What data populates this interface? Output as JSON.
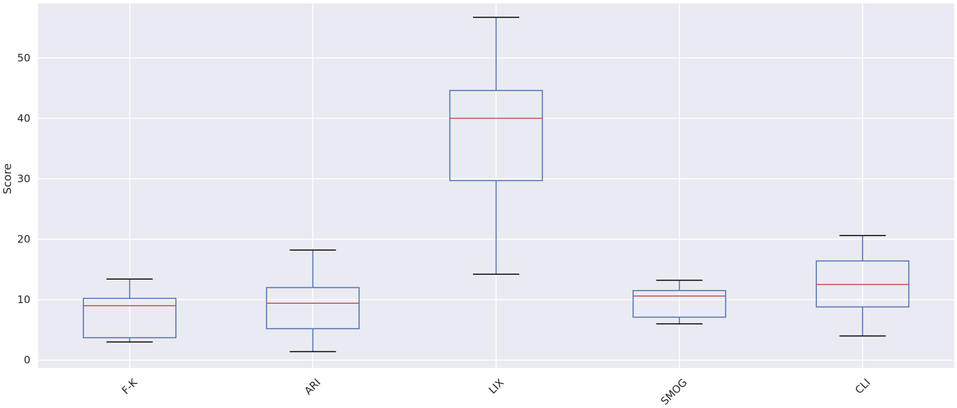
{
  "chart_data": {
    "type": "box",
    "title": "",
    "xlabel": "",
    "ylabel": "Score",
    "ylim": [
      -1.3,
      59.0
    ],
    "yticks": [
      0,
      10,
      20,
      30,
      40,
      50
    ],
    "grid": true,
    "categories": [
      "F-K",
      "ARI",
      "LIX",
      "SMOG",
      "CLI"
    ],
    "boxes": [
      {
        "name": "F-K",
        "whisker_low": 3.0,
        "q1": 3.7,
        "median": 9.0,
        "q3": 10.2,
        "whisker_high": 13.4
      },
      {
        "name": "ARI",
        "whisker_low": 1.4,
        "q1": 5.2,
        "median": 9.4,
        "q3": 12.0,
        "whisker_high": 18.2
      },
      {
        "name": "LIX",
        "whisker_low": 14.2,
        "q1": 29.7,
        "median": 40.0,
        "q3": 44.6,
        "whisker_high": 56.7
      },
      {
        "name": "SMOG",
        "whisker_low": 6.0,
        "q1": 7.1,
        "median": 10.6,
        "q3": 11.5,
        "whisker_high": 13.2
      },
      {
        "name": "CLI",
        "whisker_low": 4.0,
        "q1": 8.8,
        "median": 12.5,
        "q3": 16.4,
        "whisker_high": 20.6
      }
    ],
    "colors": {
      "plot_background": "#eaeaf2",
      "grid": "#ffffff",
      "box": "#4c72b0",
      "median": "#c44e52",
      "cap": "#000000"
    }
  }
}
